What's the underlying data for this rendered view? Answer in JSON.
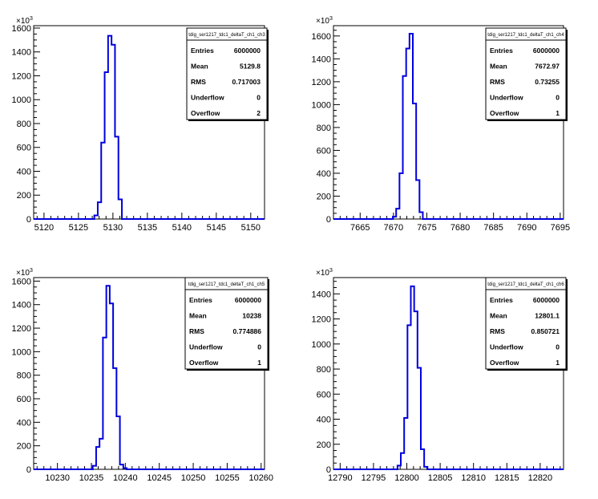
{
  "chart_data": [
    {
      "type": "histogram",
      "title": "tdig_ser1217_tdc1_deltaT_ch1_ch3",
      "multiplier_label": "×10",
      "multiplier_exp": "3",
      "xlim": [
        5118.5,
        5152
      ],
      "ylim": [
        0,
        1620
      ],
      "xticks": [
        5120,
        5125,
        5130,
        5135,
        5140,
        5145,
        5150
      ],
      "yticks": [
        0,
        200,
        400,
        600,
        800,
        1000,
        1200,
        1400,
        1600
      ],
      "bin_edges": [
        5127.3,
        5127.8,
        5128.3,
        5128.8,
        5129.3,
        5129.8,
        5130.3,
        5130.8,
        5131.3
      ],
      "values": [
        30,
        140,
        640,
        1230,
        1535,
        1460,
        690,
        165
      ],
      "stats": [
        {
          "label": "Entries",
          "value": "6000000"
        },
        {
          "label": "Mean",
          "value": "5129.8"
        },
        {
          "label": "RMS",
          "value": "0.717003"
        },
        {
          "label": "Underflow",
          "value": "0"
        },
        {
          "label": "Overflow",
          "value": "2"
        }
      ]
    },
    {
      "type": "histogram",
      "title": "tdig_ser1217_tdc1_deltaT_ch1_ch4",
      "multiplier_label": "×10",
      "multiplier_exp": "3",
      "xlim": [
        7661,
        7695.5
      ],
      "ylim": [
        0,
        1690
      ],
      "xticks": [
        7665,
        7670,
        7675,
        7680,
        7685,
        7690,
        7695
      ],
      "yticks": [
        0,
        200,
        400,
        600,
        800,
        1000,
        1200,
        1400,
        1600
      ],
      "bin_edges": [
        7669.9,
        7670.4,
        7670.9,
        7671.4,
        7671.9,
        7672.4,
        7672.9,
        7673.4,
        7673.9,
        7674.4
      ],
      "values": [
        20,
        90,
        400,
        1250,
        1490,
        1620,
        1010,
        340,
        60
      ],
      "stats": [
        {
          "label": "Entries",
          "value": "6000000"
        },
        {
          "label": "Mean",
          "value": "7672.97"
        },
        {
          "label": "RMS",
          "value": "0.73255"
        },
        {
          "label": "Underflow",
          "value": "0"
        },
        {
          "label": "Overflow",
          "value": "1"
        }
      ]
    },
    {
      "type": "histogram",
      "title": "tdig_ser1217_tdc1_deltaT_ch1_ch5",
      "multiplier_label": "×10",
      "multiplier_exp": "3",
      "xlim": [
        10226.5,
        10260.5
      ],
      "ylim": [
        0,
        1630
      ],
      "xticks": [
        10230,
        10235,
        10240,
        10245,
        10250,
        10255,
        10260
      ],
      "yticks": [
        0,
        200,
        400,
        600,
        800,
        1000,
        1200,
        1400,
        1600
      ],
      "bin_edges": [
        10235.2,
        10235.7,
        10236.2,
        10236.7,
        10237.2,
        10237.7,
        10238.2,
        10238.7,
        10239.2,
        10239.7,
        10240.2
      ],
      "values": [
        30,
        190,
        260,
        1120,
        1560,
        1410,
        860,
        450,
        40,
        10
      ],
      "stats": [
        {
          "label": "Entries",
          "value": "6000000"
        },
        {
          "label": "Mean",
          "value": "10238"
        },
        {
          "label": "RMS",
          "value": "0.774886"
        },
        {
          "label": "Underflow",
          "value": "0"
        },
        {
          "label": "Overflow",
          "value": "1"
        }
      ]
    },
    {
      "type": "histogram",
      "title": "tdig_ser1217_tdc1_deltaT_ch1_ch6",
      "multiplier_label": "×10",
      "multiplier_exp": "3",
      "xlim": [
        12789,
        12823.5
      ],
      "ylim": [
        0,
        1530
      ],
      "xticks": [
        12790,
        12795,
        12800,
        12805,
        12810,
        12815,
        12820
      ],
      "yticks": [
        0,
        200,
        400,
        600,
        800,
        1000,
        1200,
        1400
      ],
      "bin_edges": [
        12798.6,
        12799.1,
        12799.6,
        12800.1,
        12800.6,
        12801.1,
        12801.6,
        12802.1,
        12802.6,
        12803.1
      ],
      "values": [
        30,
        130,
        410,
        1150,
        1460,
        1260,
        810,
        160,
        20
      ],
      "stats": [
        {
          "label": "Entries",
          "value": "6000000"
        },
        {
          "label": "Mean",
          "value": "12801.1"
        },
        {
          "label": "RMS",
          "value": "0.850721"
        },
        {
          "label": "Underflow",
          "value": "0"
        },
        {
          "label": "Overflow",
          "value": "1"
        }
      ]
    }
  ]
}
